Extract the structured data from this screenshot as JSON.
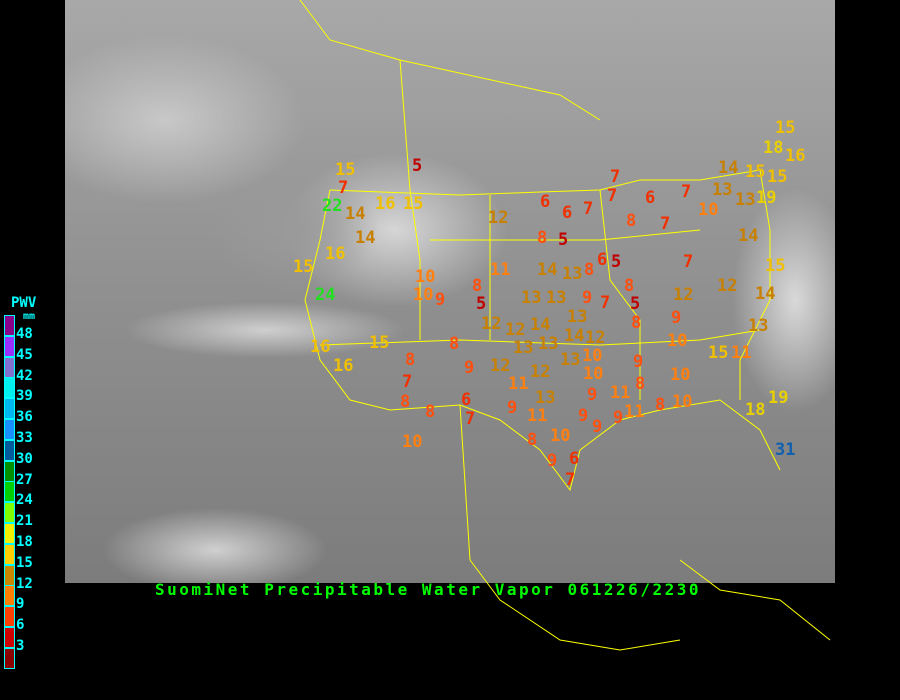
{
  "title": "SuomiNet Precipitable Water Vapor 061226/2230",
  "legend": {
    "title": "PWV",
    "unit": "mm",
    "bins": [
      {
        "label": "48",
        "color": "#8b008b"
      },
      {
        "label": "45",
        "color": "#9a30ff"
      },
      {
        "label": "42",
        "color": "#8070d0"
      },
      {
        "label": "39",
        "color": "#00f0f0"
      },
      {
        "label": "36",
        "color": "#00b8f0"
      },
      {
        "label": "33",
        "color": "#1890ff"
      },
      {
        "label": "30",
        "color": "#005a9c"
      },
      {
        "label": "27",
        "color": "#009000"
      },
      {
        "label": "24",
        "color": "#00d000"
      },
      {
        "label": "21",
        "color": "#80ff00"
      },
      {
        "label": "18",
        "color": "#f0f000"
      },
      {
        "label": "15",
        "color": "#ffd000"
      },
      {
        "label": "12",
        "color": "#c88800"
      },
      {
        "label": "9",
        "color": "#ff8000"
      },
      {
        "label": "6",
        "color": "#ff4000"
      },
      {
        "label": "3",
        "color": "#d00000"
      },
      {
        "label": "",
        "color": "#8b0000"
      }
    ]
  },
  "stations": [
    5,
    15,
    7,
    22,
    14,
    16,
    15,
    14,
    16,
    15,
    24,
    12,
    10,
    10,
    9,
    8,
    5,
    11,
    14,
    13,
    8,
    6,
    5,
    7,
    6,
    6,
    7,
    7,
    7,
    8,
    6,
    7,
    7,
    8,
    5,
    10,
    13,
    13,
    14,
    15,
    19,
    15,
    15,
    18,
    16,
    14,
    15,
    14,
    12,
    12,
    8,
    5,
    9,
    7,
    13,
    13,
    13,
    12,
    12,
    14,
    14,
    12,
    13,
    13,
    10,
    10,
    13,
    12,
    12,
    11,
    9,
    13,
    11,
    9,
    9,
    9,
    9,
    10,
    8,
    9,
    6,
    7,
    9,
    8,
    9,
    10,
    15,
    11,
    13,
    10,
    10,
    11,
    11,
    8,
    9,
    8,
    19,
    18,
    31,
    16,
    15,
    16,
    8,
    8,
    7,
    8,
    8,
    6,
    7,
    10
  ],
  "colors": {
    "border": "#ffff00",
    "title": "#00ff00",
    "legend_text": "#00ffff"
  }
}
